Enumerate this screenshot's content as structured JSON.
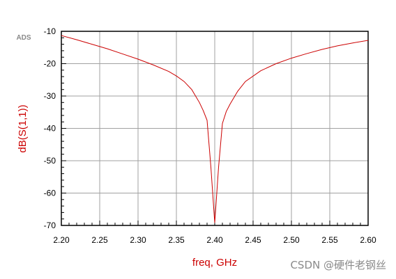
{
  "chart_data": {
    "type": "line",
    "logo": "ADS",
    "xlabel": "freq, GHz",
    "ylabel": "dB(S(1,1))",
    "xlim": [
      2.2,
      2.6
    ],
    "ylim": [
      -70,
      -10
    ],
    "x_ticks": [
      "2.20",
      "2.25",
      "2.30",
      "2.35",
      "2.40",
      "2.45",
      "2.50",
      "2.55",
      "2.60"
    ],
    "y_ticks": [
      "-10",
      "-20",
      "-30",
      "-40",
      "-50",
      "-60",
      "-70"
    ],
    "grid": true,
    "series": [
      {
        "color": "#cc0000",
        "x": [
          2.2,
          2.22,
          2.24,
          2.26,
          2.28,
          2.3,
          2.32,
          2.34,
          2.35,
          2.36,
          2.37,
          2.38,
          2.385,
          2.39,
          2.395,
          2.4,
          2.405,
          2.41,
          2.415,
          2.42,
          2.43,
          2.44,
          2.46,
          2.48,
          2.5,
          2.52,
          2.54,
          2.56,
          2.58,
          2.6
        ],
        "y": [
          -11.3,
          -12.6,
          -14.0,
          -15.4,
          -17.0,
          -18.6,
          -20.4,
          -22.4,
          -23.8,
          -25.5,
          -28.0,
          -32.0,
          -34.5,
          -37.5,
          -52.0,
          -69.2,
          -52.0,
          -38.5,
          -34.8,
          -32.5,
          -28.5,
          -25.5,
          -22.2,
          -20.0,
          -18.3,
          -16.9,
          -15.6,
          -14.5,
          -13.6,
          -12.8
        ]
      }
    ]
  },
  "watermark": "CSDN @硬件老钢丝"
}
